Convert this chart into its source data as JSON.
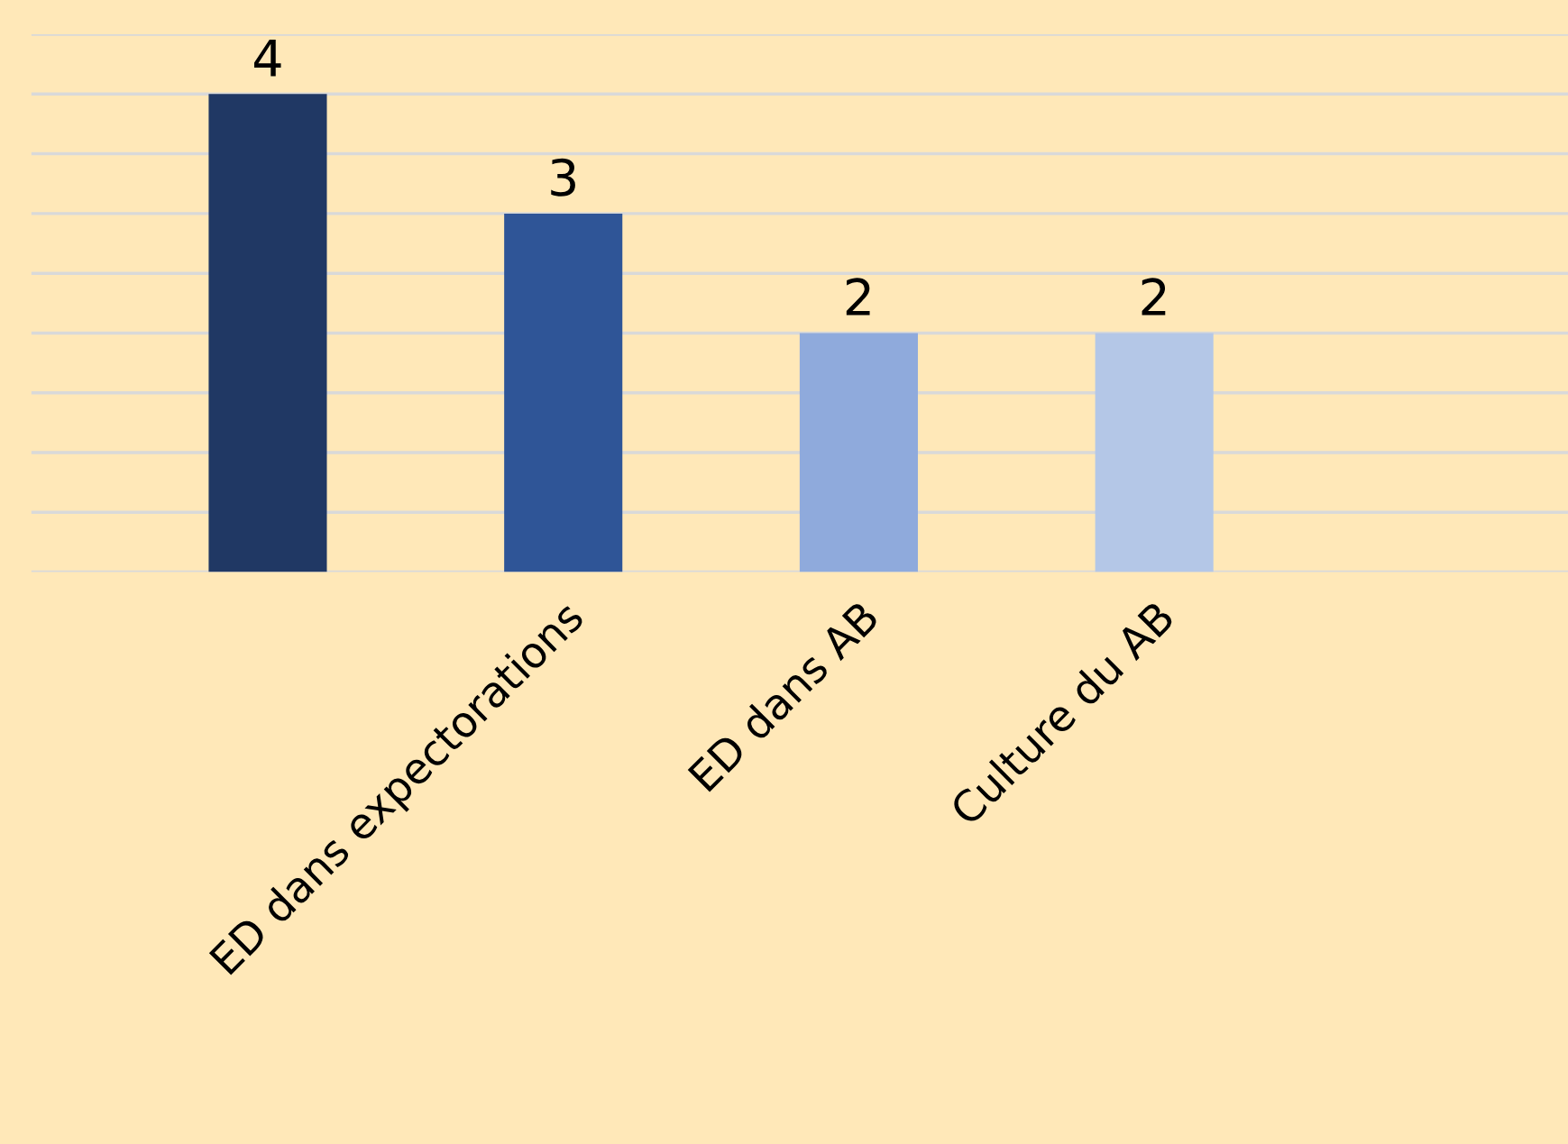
{
  "chart_data": {
    "type": "bar",
    "categories": [
      null,
      "ED dans expectorations",
      "ED dans AB",
      "Culture du AB"
    ],
    "values": [
      4,
      3,
      2,
      2
    ],
    "colors": [
      "#203864",
      "#2f5597",
      "#8faadc",
      "#b4c7e7"
    ],
    "data_labels": true,
    "ylim": [
      0,
      4.5
    ],
    "yticks": [
      {
        "value": 0,
        "label": null
      },
      {
        "value": 0.5,
        "label": null
      },
      {
        "value": 1,
        "label": null
      },
      {
        "value": 1.5,
        "label": null
      },
      {
        "value": 2,
        "label": null
      },
      {
        "value": 2.5,
        "label": null
      },
      {
        "value": 3,
        "label": null
      },
      {
        "value": 3.5,
        "label": null
      },
      {
        "value": 4,
        "label": null
      },
      {
        "value": 4.5,
        "label": null
      }
    ],
    "grid": "y",
    "tick_labels": "x"
  }
}
